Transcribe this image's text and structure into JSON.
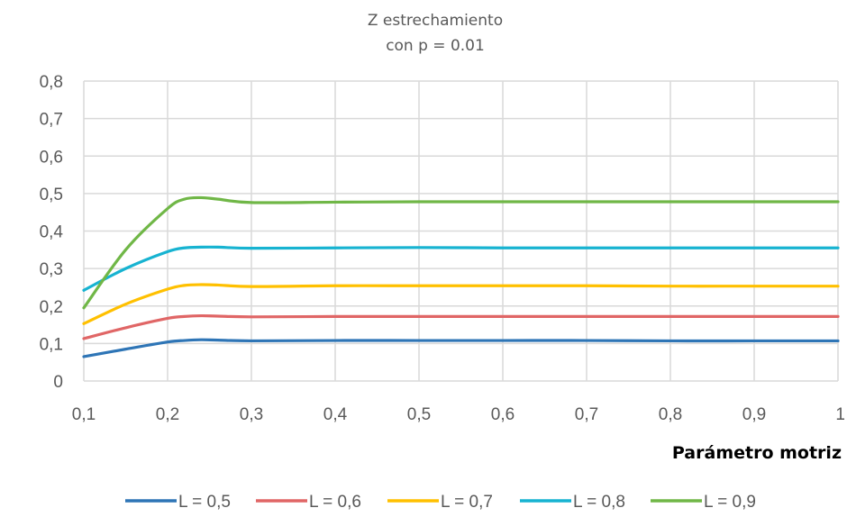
{
  "chart_data": {
    "type": "line",
    "title": "Z estrechamiento",
    "subtitle": "con p = 0.01",
    "xlabel": "Parámetro motriz",
    "ylabel": "",
    "xlim": [
      0.1,
      1
    ],
    "ylim": [
      0,
      0.8
    ],
    "x_ticks": [
      "0,1",
      "0,2",
      "0,3",
      "0,4",
      "0,5",
      "0,6",
      "0,7",
      "0,8",
      "0,9",
      "1"
    ],
    "y_ticks": [
      "0",
      "0,1",
      "0,2",
      "0,3",
      "0,4",
      "0,5",
      "0,6",
      "0,7",
      "0,8"
    ],
    "grid": true,
    "legend_position": "bottom",
    "x": [
      0.1,
      0.15,
      0.2,
      0.22,
      0.24,
      0.26,
      0.3,
      0.4,
      0.5,
      0.6,
      0.7,
      0.8,
      0.9,
      1.0
    ],
    "series": [
      {
        "name": "L = 0,5",
        "color": "#2e75b6",
        "values": [
          0.065,
          0.085,
          0.104,
          0.108,
          0.11,
          0.109,
          0.107,
          0.108,
          0.108,
          0.108,
          0.108,
          0.107,
          0.107,
          0.107
        ]
      },
      {
        "name": "L = 0,6",
        "color": "#e06666",
        "values": [
          0.113,
          0.142,
          0.167,
          0.172,
          0.174,
          0.173,
          0.171,
          0.172,
          0.172,
          0.172,
          0.172,
          0.172,
          0.172,
          0.172
        ]
      },
      {
        "name": "L = 0,7",
        "color": "#ffc000",
        "values": [
          0.153,
          0.205,
          0.245,
          0.255,
          0.257,
          0.256,
          0.252,
          0.254,
          0.254,
          0.254,
          0.254,
          0.253,
          0.253,
          0.253
        ]
      },
      {
        "name": "L = 0,8",
        "color": "#17b3d1",
        "values": [
          0.242,
          0.3,
          0.345,
          0.355,
          0.357,
          0.357,
          0.354,
          0.355,
          0.356,
          0.355,
          0.355,
          0.355,
          0.355,
          0.355
        ]
      },
      {
        "name": "L = 0,9",
        "color": "#70b747",
        "values": [
          0.195,
          0.35,
          0.46,
          0.485,
          0.489,
          0.485,
          0.476,
          0.477,
          0.478,
          0.478,
          0.478,
          0.478,
          0.478,
          0.478
        ]
      }
    ]
  }
}
